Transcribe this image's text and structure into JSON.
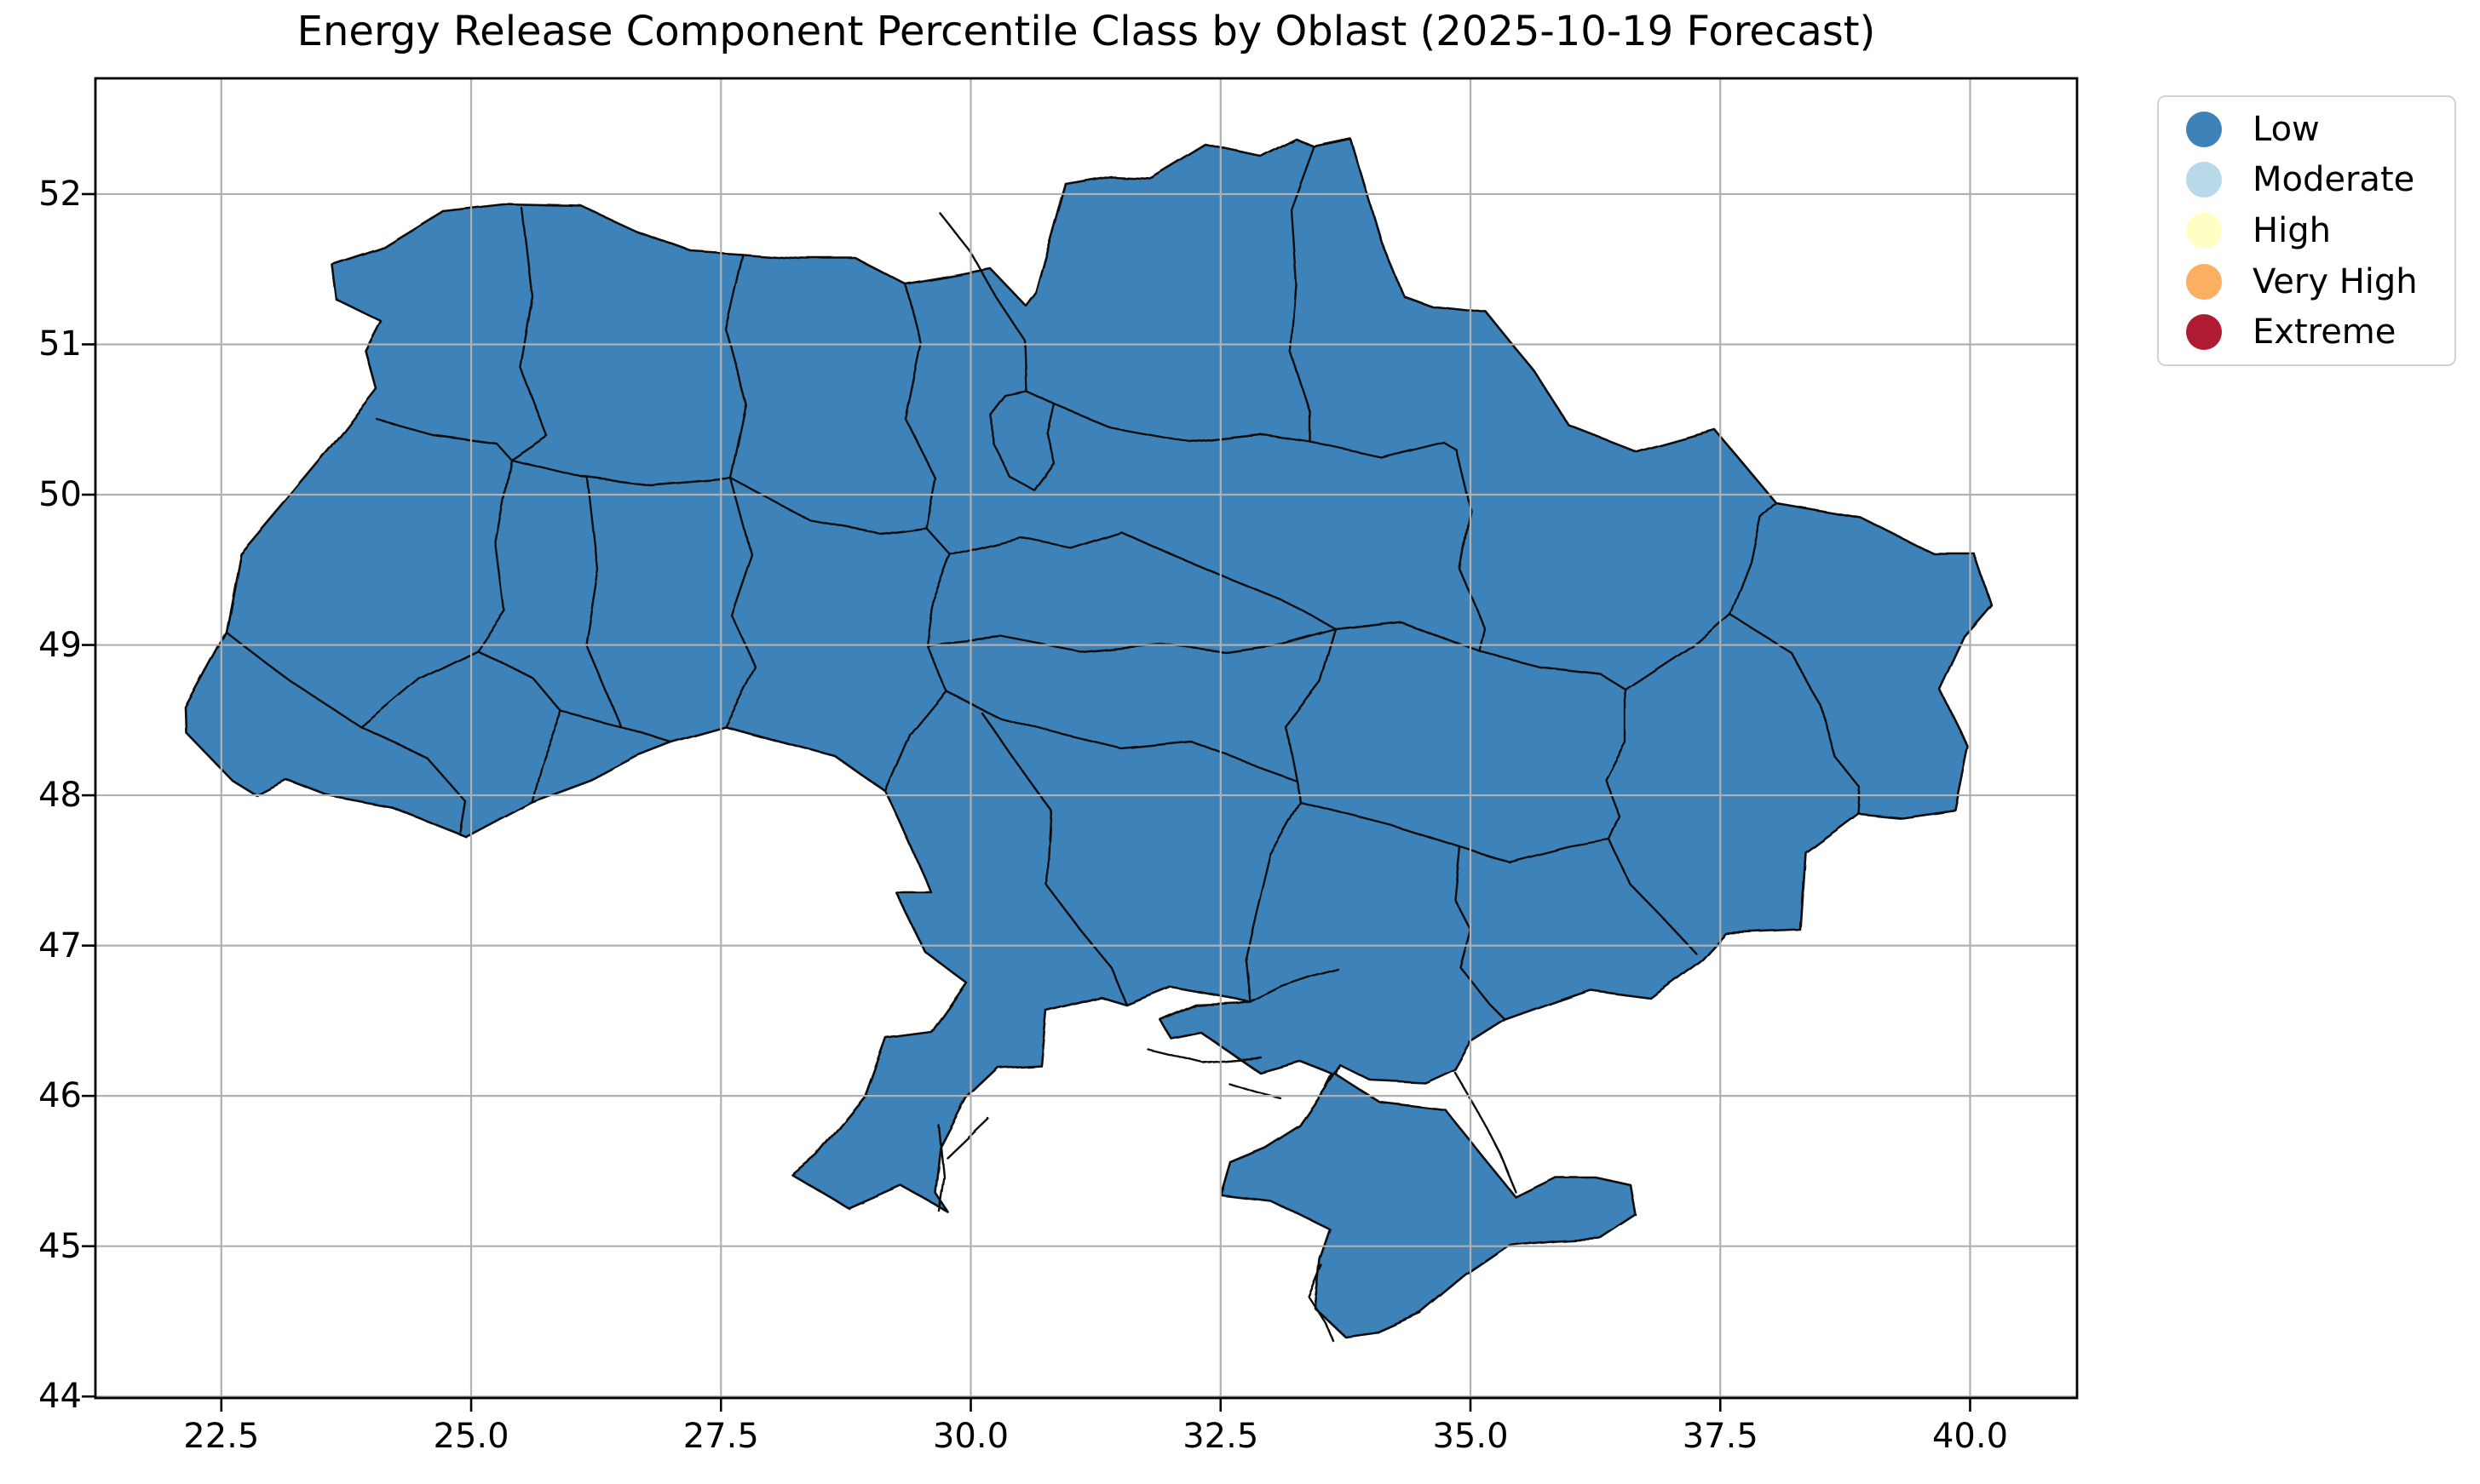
{
  "figure": {
    "title": "Energy Release Component Percentile Class by Oblast (2025-10-19 Forecast)",
    "background_color": "#ffffff"
  },
  "axes": {
    "xlim": [
      21.24,
      41.07
    ],
    "ylim": [
      43.99,
      52.77
    ],
    "x_tick_values": [
      22.5,
      25.0,
      27.5,
      30.0,
      32.5,
      35.0,
      37.5,
      40.0
    ],
    "x_tick_labels": [
      "22.5",
      "25.0",
      "27.5",
      "30.0",
      "32.5",
      "35.0",
      "37.5",
      "40.0"
    ],
    "y_tick_values": [
      52,
      51,
      50,
      49,
      48,
      47,
      46,
      45,
      44
    ],
    "y_tick_labels": [
      "52",
      "51",
      "50",
      "49",
      "48",
      "47",
      "46",
      "45",
      "44"
    ],
    "grid": true,
    "grid_color": "#b0b0b0",
    "spine_color": "#000000",
    "tick_label_color": "#000000"
  },
  "legend": {
    "entries": [
      {
        "label": "Low",
        "color": "#3d82b8"
      },
      {
        "label": "Moderate",
        "color": "#b8d9e8"
      },
      {
        "label": "High",
        "color": "#ffffc5"
      },
      {
        "label": "Very High",
        "color": "#fcae62"
      },
      {
        "label": "Extreme",
        "color": "#b01b34"
      }
    ],
    "border_color": "#d2d2d2",
    "position": "upper right, outside axes"
  },
  "map": {
    "region": "Ukraine",
    "subdivision_level": "oblast",
    "fill_class": "Low",
    "border_color": "#0e0e0e"
  },
  "chart_data": {
    "type": "choropleth",
    "title": "Energy Release Component Percentile Class by Oblast (2025-10-19 Forecast)",
    "map_region": "Ukraine, oblast-level polygons (including Crimea and Kyiv city)",
    "metric": "Energy Release Component percentile class",
    "forecast_date": "2025-10-19",
    "classes": [
      "Low",
      "Moderate",
      "High",
      "Very High",
      "Extreme"
    ],
    "class_colors": {
      "Low": "#3d82b8",
      "Moderate": "#b8d9e8",
      "High": "#ffffc5",
      "Very High": "#fcae62",
      "Extreme": "#b01b34"
    },
    "values_observed": "Every oblast polygon is rendered in the Low class (all map regions share the same steel-blue fill)",
    "x_axis": {
      "label": "",
      "ticks": [
        22.5,
        25.0,
        27.5,
        30.0,
        32.5,
        35.0,
        37.5,
        40.0
      ],
      "range": [
        21.24,
        41.07
      ],
      "meaning": "longitude, degrees East"
    },
    "y_axis": {
      "label": "",
      "ticks": [
        52,
        51,
        50,
        49,
        48,
        47,
        46,
        45,
        44
      ],
      "range": [
        43.99,
        52.77
      ],
      "meaning": "latitude, degrees North"
    },
    "grid": true,
    "legend_position": "upper right outside plot",
    "legend_entries": [
      "Low",
      "Moderate",
      "High",
      "Very High",
      "Extreme"
    ]
  }
}
